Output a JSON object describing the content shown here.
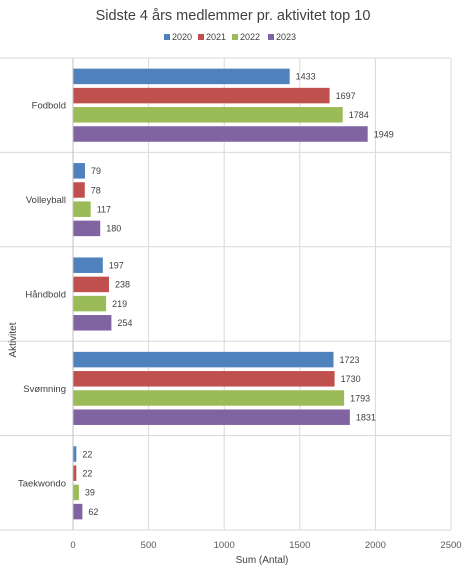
{
  "chart_data": {
    "type": "bar",
    "orientation": "horizontal",
    "title": "Sidste 4 års medlemmer pr. aktivitet top 10",
    "xlabel": "Sum (Antal)",
    "ylabel": "Aktivitet",
    "xlim": [
      0,
      2500
    ],
    "xticks": [
      "0",
      "500",
      "1000",
      "1500",
      "2000",
      "2500"
    ],
    "grid": true,
    "legend_position": "top",
    "categories": [
      "Fodbold",
      "Volleyball",
      "Håndbold",
      "Svømning",
      "Taekwondo"
    ],
    "series": [
      {
        "name": "2020",
        "color": "#4f81bd",
        "values": [
          1433,
          79,
          197,
          1723,
          22
        ]
      },
      {
        "name": "2021",
        "color": "#c0504d",
        "values": [
          1697,
          78,
          238,
          1730,
          22
        ]
      },
      {
        "name": "2022",
        "color": "#9bbb59",
        "values": [
          1784,
          117,
          219,
          1793,
          39
        ]
      },
      {
        "name": "2023",
        "color": "#8064a2",
        "values": [
          1949,
          180,
          254,
          1831,
          62
        ]
      }
    ]
  }
}
